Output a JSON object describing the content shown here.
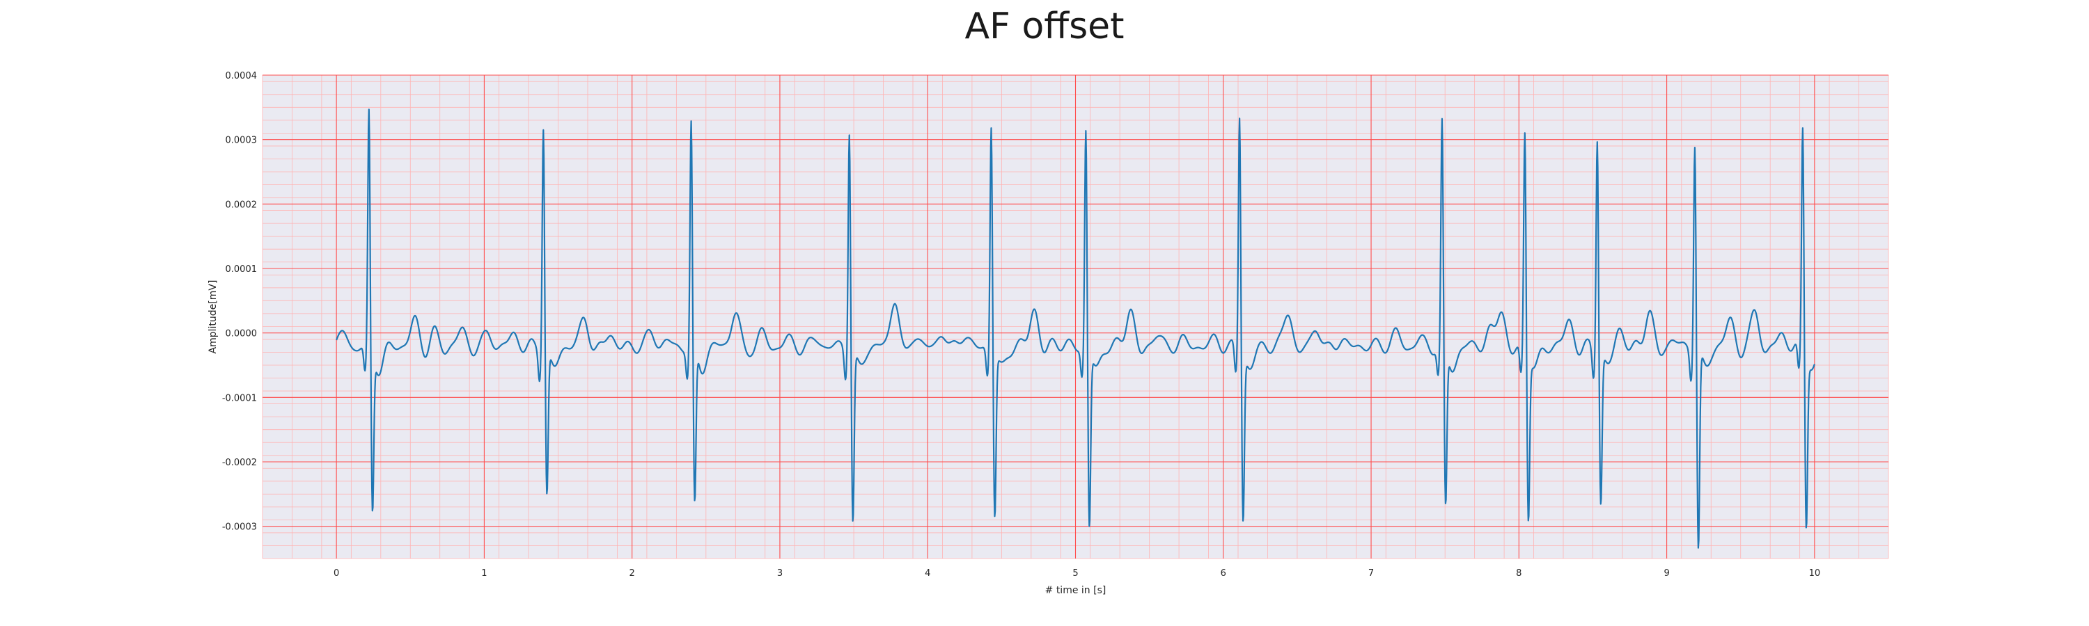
{
  "chart_data": {
    "type": "line",
    "title": "AF offset",
    "xlabel": "# time in [s]",
    "ylabel": "Amplitude[mV]",
    "xlim": [
      -0.5,
      10.5
    ],
    "ylim": [
      -0.00035,
      0.0004
    ],
    "x_ticks": [
      0,
      1,
      2,
      3,
      4,
      5,
      6,
      7,
      8,
      9,
      10
    ],
    "x_tick_labels": [
      "0",
      "1",
      "2",
      "3",
      "4",
      "5",
      "6",
      "7",
      "8",
      "9",
      "10"
    ],
    "y_ticks": [
      -0.0003,
      -0.0002,
      -0.0001,
      0.0,
      0.0001,
      0.0002,
      0.0003,
      0.0004
    ],
    "y_tick_labels": [
      "-0.0003",
      "-0.0002",
      "-0.0001",
      "0.0000",
      "0.0001",
      "0.0002",
      "0.0003",
      "0.0004"
    ],
    "grid": true,
    "minor_grid": true,
    "colors": {
      "background": "#eaeaf2",
      "major_grid": "#ff4d4d",
      "minor_grid": "#ffb3b3",
      "line": "#1f77b4"
    },
    "series": [
      {
        "sample_rate_hz": 300,
        "duration_s": 10,
        "baseline_offset": -2e-05,
        "beats": [
          {
            "t": 0.22,
            "peak": 0.000365,
            "trough": -0.00025
          },
          {
            "t": 1.4,
            "peak": 0.00035,
            "trough": -0.000225
          },
          {
            "t": 2.4,
            "peak": 0.00035,
            "trough": -0.000245
          },
          {
            "t": 3.47,
            "peak": 0.000345,
            "trough": -0.000265
          },
          {
            "t": 4.43,
            "peak": 0.00035,
            "trough": -0.000255
          },
          {
            "t": 5.07,
            "peak": 0.00034,
            "trough": -0.000275
          },
          {
            "t": 6.11,
            "peak": 0.000365,
            "trough": -0.00026
          },
          {
            "t": 7.48,
            "peak": 0.00035,
            "trough": -0.000245
          },
          {
            "t": 8.04,
            "peak": 0.00034,
            "trough": -0.000255
          },
          {
            "t": 8.53,
            "peak": 0.000335,
            "trough": -0.000235
          },
          {
            "t": 9.19,
            "peak": 0.000325,
            "trough": -0.00031
          },
          {
            "t": 9.92,
            "peak": 0.000345,
            "trough": -0.000265
          }
        ],
        "f_waves": [
          {
            "t": 0.05,
            "a": 2e-05
          },
          {
            "t": 0.53,
            "a": 4e-05
          },
          {
            "t": 0.66,
            "a": 2e-05
          },
          {
            "t": 0.85,
            "a": 2.5e-05
          },
          {
            "t": 1.03,
            "a": 2e-05
          },
          {
            "t": 1.2,
            "a": 2e-05
          },
          {
            "t": 1.68,
            "a": 4.5e-05
          },
          {
            "t": 1.85,
            "a": 2e-05
          },
          {
            "t": 2.13,
            "a": 2e-05
          },
          {
            "t": 2.23,
            "a": 1e-05
          },
          {
            "t": 2.7,
            "a": 5.5e-05
          },
          {
            "t": 2.88,
            "a": 2e-05
          },
          {
            "t": 3.05,
            "a": 1e-05
          },
          {
            "t": 3.25,
            "a": 1e-05
          },
          {
            "t": 3.78,
            "a": 7.5e-05
          },
          {
            "t": 3.92,
            "a": 2e-05
          },
          {
            "t": 4.1,
            "a": 2e-05
          },
          {
            "t": 4.25,
            "a": 2e-05
          },
          {
            "t": 4.72,
            "a": 6e-05
          },
          {
            "t": 4.86,
            "a": 1e-05
          },
          {
            "t": 5.37,
            "a": 6e-05
          },
          {
            "t": 5.55,
            "a": 2e-05
          },
          {
            "t": 5.72,
            "a": 1e-05
          },
          {
            "t": 5.95,
            "a": 1e-05
          },
          {
            "t": 6.44,
            "a": 5.5e-05
          },
          {
            "t": 6.63,
            "a": 3e-05
          },
          {
            "t": 6.8,
            "a": 1e-05
          },
          {
            "t": 7.17,
            "a": 2e-05
          },
          {
            "t": 7.33,
            "a": 1e-05
          },
          {
            "t": 7.8,
            "a": 2e-05
          },
          {
            "t": 7.88,
            "a": 6.5e-05
          },
          {
            "t": 8.34,
            "a": 4e-05
          },
          {
            "t": 8.68,
            "a": 3e-05
          },
          {
            "t": 8.88,
            "a": 5.5e-05
          },
          {
            "t": 9.04,
            "a": 1e-05
          },
          {
            "t": 9.43,
            "a": 4e-05
          },
          {
            "t": 9.6,
            "a": 5.5e-05
          },
          {
            "t": 9.78,
            "a": 2e-05
          }
        ]
      }
    ]
  }
}
